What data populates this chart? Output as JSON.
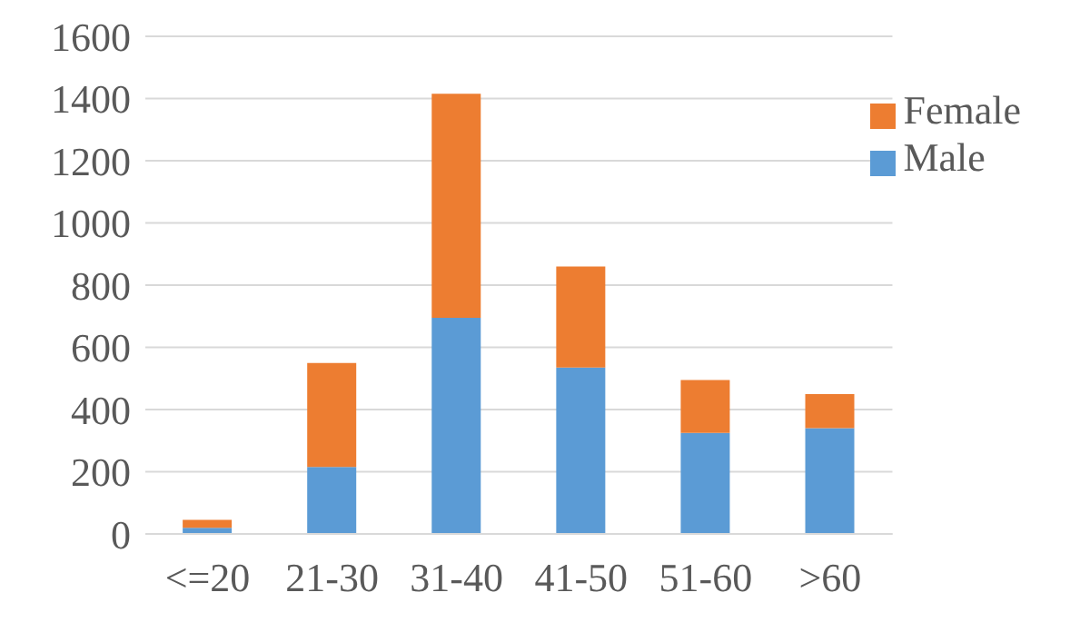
{
  "chart_data": {
    "type": "bar",
    "stacked": true,
    "categories": [
      "<=20",
      "21-30",
      "31-40",
      "41-50",
      "51-60",
      ">60"
    ],
    "series": [
      {
        "name": "Male",
        "color": "#5b9bd5",
        "values": [
          20,
          215,
          695,
          535,
          325,
          340
        ]
      },
      {
        "name": "Female",
        "color": "#ed7d31",
        "values": [
          25,
          335,
          720,
          325,
          170,
          110
        ]
      }
    ],
    "ylim": [
      0,
      1600
    ],
    "yticks": [
      0,
      200,
      400,
      600,
      800,
      1000,
      1200,
      1400,
      1600
    ],
    "grid": "y",
    "legend": "top right"
  }
}
